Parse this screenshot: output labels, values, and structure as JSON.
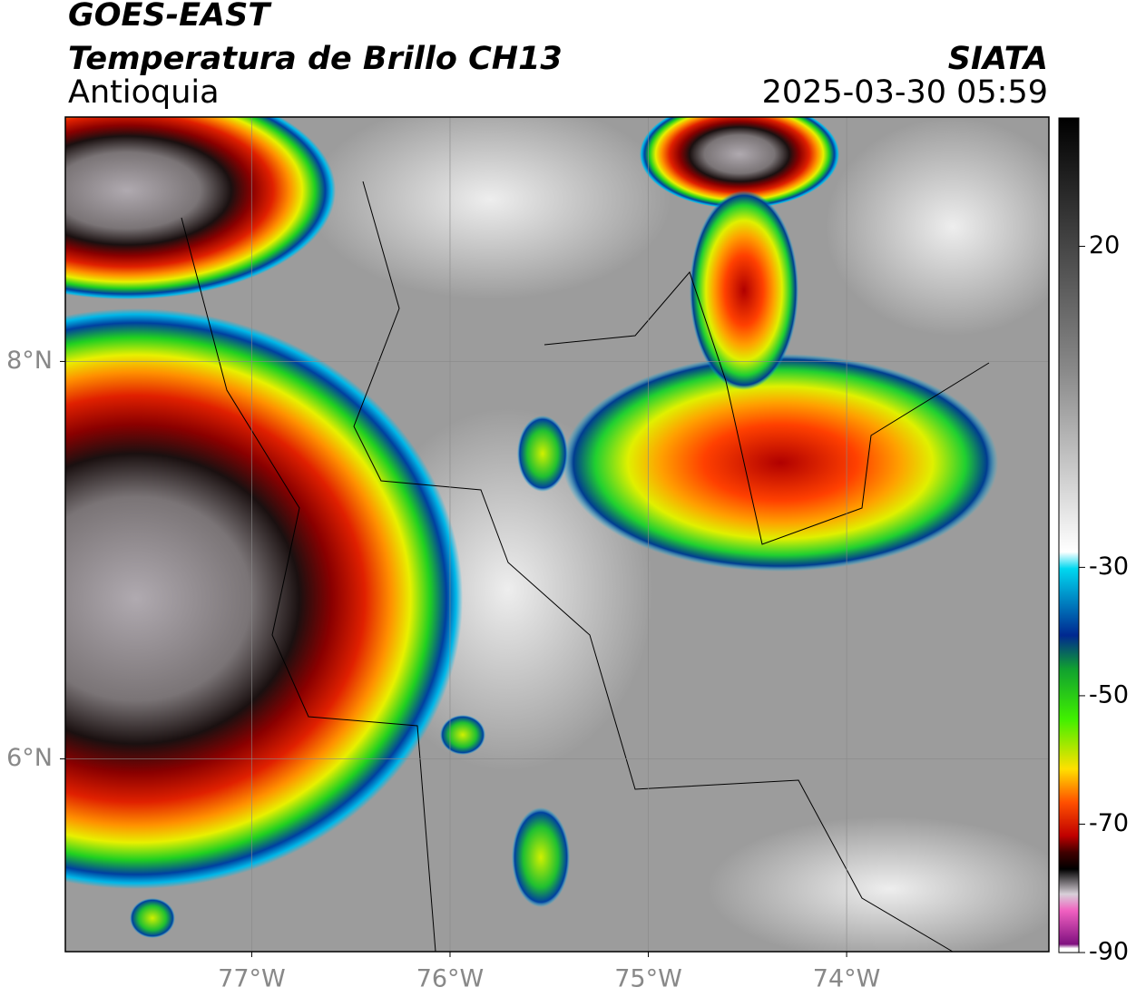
{
  "header": {
    "title": "GOES-EAST",
    "subtitle": "Temperatura de Brillo CH13",
    "region": "Antioquia",
    "source": "SIATA",
    "datetime": "2025-03-30 05:59"
  },
  "map": {
    "xlim": [
      -77.94,
      -72.98
    ],
    "ylim": [
      5.03,
      9.23
    ],
    "xticks": [
      {
        "value": -77,
        "label": "77°W"
      },
      {
        "value": -76,
        "label": "76°W"
      },
      {
        "value": -75,
        "label": "75°W"
      },
      {
        "value": -74,
        "label": "74°W"
      }
    ],
    "yticks": [
      {
        "value": 8,
        "label": "8°N"
      },
      {
        "value": 6,
        "label": "6°N"
      }
    ],
    "grid": true
  },
  "colorbar": {
    "lim": [
      -90,
      40
    ],
    "ticks": [
      20,
      -30,
      -50,
      -70,
      -90
    ]
  }
}
